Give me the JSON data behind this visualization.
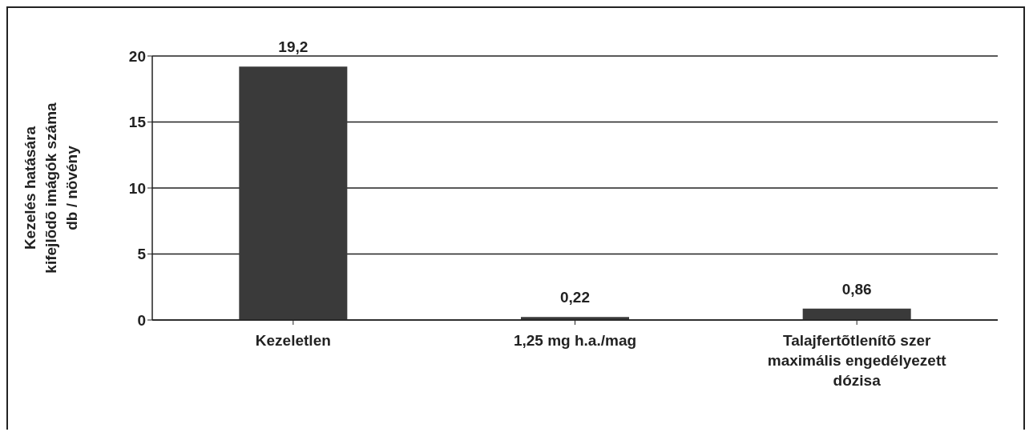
{
  "chart_data": {
    "type": "bar",
    "ylabel": "Kezelés hatására\nkifejlõdõ imágók száma\ndb / növény",
    "categories": [
      "Kezeletlen",
      "1,25 mg h.a./mag",
      "Talajfertõtlenítõ szer maximális engedélyezett dózisa"
    ],
    "values": [
      19.2,
      0.22,
      0.86
    ],
    "value_labels": [
      "19,2",
      "0,22",
      "0,86"
    ],
    "color": "#3a3a3a",
    "ylim": [
      0,
      20
    ],
    "yticks": [
      0,
      5,
      10,
      15,
      20
    ],
    "grid": "y"
  }
}
